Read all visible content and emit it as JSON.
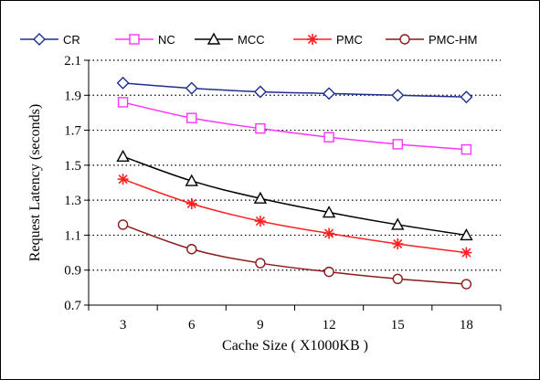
{
  "chart_data": {
    "type": "line",
    "xlabel": "Cache Size ( X1000KB )",
    "ylabel": "Request Latency  (seconds)",
    "x": [
      3,
      6,
      9,
      12,
      15,
      18
    ],
    "xticks": [
      "3",
      "6",
      "9",
      "12",
      "15",
      "18"
    ],
    "yticks": [
      "0.7",
      "0.9",
      "1.1",
      "1.3",
      "1.5",
      "1.7",
      "1.9",
      "2.1"
    ],
    "ylim": [
      0.7,
      2.1
    ],
    "grid": "horizontal dotted",
    "legend_position": "top",
    "series": [
      {
        "name": "CR",
        "color": "#1f2f8f",
        "marker": "diamond",
        "values": [
          1.97,
          1.94,
          1.92,
          1.91,
          1.9,
          1.89
        ]
      },
      {
        "name": "NC",
        "color": "#ff33ff",
        "marker": "square",
        "values": [
          1.86,
          1.77,
          1.71,
          1.66,
          1.62,
          1.59
        ]
      },
      {
        "name": "MCC",
        "color": "#000000",
        "marker": "triangle",
        "values": [
          1.55,
          1.41,
          1.31,
          1.23,
          1.16,
          1.1
        ]
      },
      {
        "name": "PMC",
        "color": "#ff2020",
        "marker": "star",
        "values": [
          1.42,
          1.28,
          1.18,
          1.11,
          1.05,
          1.0
        ]
      },
      {
        "name": "PMC-HM",
        "color": "#8b1a1a",
        "marker": "circle",
        "values": [
          1.16,
          1.02,
          0.94,
          0.89,
          0.85,
          0.82
        ]
      }
    ]
  }
}
